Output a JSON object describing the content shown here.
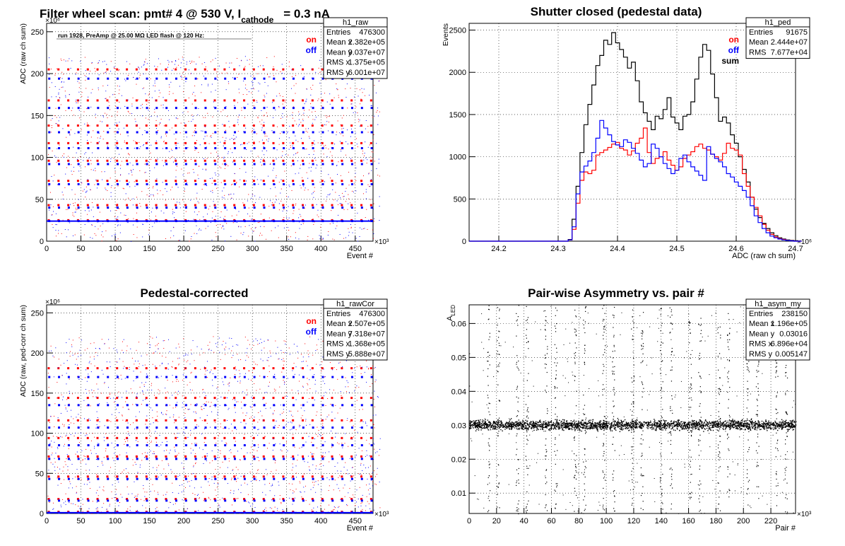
{
  "chart_data": [
    {
      "id": "raw",
      "type": "scatter",
      "title": "Filter wheel scan: pmt#   4 @   530 V, I",
      "title_sub": "cathode",
      "title_tail": "= 0.3 nA",
      "subtitle": "run 1928, PreAmp @ 25.00 MΩ LED flash @  120 Hz:",
      "xlabel": "Event #",
      "ylabel": "ADC (raw ch sum)",
      "x_exponent": "×10³",
      "y_exponent": "×10⁶",
      "xlim": [
        0,
        476
      ],
      "ylim": [
        0,
        260
      ],
      "xticks": [
        0,
        50,
        100,
        150,
        200,
        250,
        300,
        350,
        400,
        450
      ],
      "yticks": [
        0,
        50,
        100,
        150,
        200,
        250
      ],
      "grid": true,
      "legend": {
        "position": "top-right",
        "entries": [
          {
            "label": "on",
            "color": "#ff0000"
          },
          {
            "label": "off",
            "color": "#0000ff"
          }
        ]
      },
      "stats": {
        "name": "h1_raw",
        "rows": [
          [
            "Entries",
            "476300"
          ],
          [
            "Mean x",
            "2.382e+05"
          ],
          [
            "Mean y",
            "9.037e+07"
          ],
          [
            "RMS x",
            "1.375e+05"
          ],
          [
            "RMS y",
            "6.001e+07"
          ]
        ]
      },
      "series": [
        {
          "name": "on",
          "color": "#ff0000",
          "levels": [
            205,
            168,
            138,
            117,
            96,
            72,
            43,
            25
          ]
        },
        {
          "name": "off",
          "color": "#0000ff",
          "levels": [
            194,
            159,
            130,
            111,
            92,
            68,
            40,
            24
          ]
        }
      ],
      "steps_x": [
        0,
        14.2,
        28.5,
        42.7,
        57,
        71.2,
        85.5,
        99.7,
        114,
        128.2,
        142.5,
        156.7,
        171,
        185.2,
        199.5,
        213.7,
        228,
        242.2,
        256.5,
        270.7,
        285,
        299.2,
        313.5,
        327.7,
        342,
        356.2,
        370.5,
        384.7,
        399,
        413.2,
        427.5,
        441.7,
        456,
        470.2
      ]
    },
    {
      "id": "ped",
      "type": "line",
      "title": "Shutter closed (pedestal data)",
      "xlabel": "ADC (raw ch sum)",
      "ylabel": "Events",
      "x_exponent": "×10⁶",
      "xlim": [
        24.15,
        24.7
      ],
      "ylim": [
        0,
        2580
      ],
      "xticks": [
        24.2,
        24.3,
        24.4,
        24.5,
        24.6,
        24.7
      ],
      "yticks": [
        0,
        500,
        1000,
        1500,
        2000,
        2500
      ],
      "grid": true,
      "legend": {
        "position": "top-right",
        "entries": [
          {
            "label": "on",
            "color": "#ff0000"
          },
          {
            "label": "off",
            "color": "#0000ff"
          },
          {
            "label": "sum",
            "color": "#000000"
          }
        ]
      },
      "stats": {
        "name": "h1_ped",
        "rows": [
          [
            "Entries",
            "91675"
          ],
          [
            "Mean",
            "2.444e+07"
          ],
          [
            "RMS",
            "7.677e+04"
          ]
        ]
      },
      "bin_start": 24.15,
      "bin_width": 0.00667,
      "series": [
        {
          "name": "sum",
          "color": "#000000",
          "values": [
            0,
            0,
            0,
            0,
            0,
            0,
            0,
            0,
            0,
            0,
            0,
            0,
            0,
            0,
            0,
            0,
            0,
            0,
            0,
            0,
            0,
            0,
            0,
            0,
            0,
            20,
            260,
            650,
            1050,
            1380,
            1620,
            1850,
            2080,
            2200,
            2380,
            2330,
            2470,
            2350,
            2270,
            2180,
            2050,
            2120,
            1900,
            1650,
            1520,
            1420,
            1320,
            1480,
            1450,
            1560,
            1700,
            1470,
            1400,
            1320,
            1480,
            1500,
            1650,
            1920,
            2180,
            2330,
            2260,
            1980,
            1700,
            1420,
            1470,
            1400,
            1260,
            1160,
            1000,
            850,
            700,
            520,
            380,
            280,
            210,
            150,
            100,
            65,
            40,
            25,
            15,
            10,
            5,
            0
          ]
        },
        {
          "name": "on",
          "color": "#ff0000",
          "values": [
            0,
            0,
            0,
            0,
            0,
            0,
            0,
            0,
            0,
            0,
            0,
            0,
            0,
            0,
            0,
            0,
            0,
            0,
            0,
            0,
            0,
            0,
            0,
            0,
            0,
            15,
            140,
            450,
            720,
            820,
            800,
            840,
            1020,
            1050,
            1080,
            1110,
            1150,
            1170,
            1100,
            1080,
            1020,
            1070,
            1160,
            1220,
            1340,
            1050,
            920,
            980,
            1000,
            1060,
            960,
            900,
            840,
            880,
            980,
            1020,
            1060,
            1120,
            1150,
            1100,
            1080,
            1030,
            1000,
            960,
            1040,
            1160,
            1100,
            1080,
            1020,
            800,
            650,
            520,
            400,
            300,
            200,
            130,
            80,
            50,
            30,
            20,
            10,
            5,
            0,
            0
          ]
        },
        {
          "name": "off",
          "color": "#0000ff",
          "values": [
            0,
            0,
            0,
            0,
            0,
            0,
            0,
            0,
            0,
            0,
            0,
            0,
            0,
            0,
            0,
            0,
            0,
            0,
            0,
            0,
            0,
            0,
            0,
            0,
            0,
            15,
            170,
            560,
            820,
            890,
            950,
            1050,
            1220,
            1430,
            1340,
            1260,
            1180,
            1140,
            1120,
            1200,
            1170,
            1100,
            1040,
            960,
            880,
            920,
            1150,
            1100,
            1000,
            920,
            860,
            800,
            840,
            980,
            1020,
            940,
            880,
            830,
            780,
            720,
            1120,
            1030,
            980,
            940,
            880,
            800,
            760,
            700,
            650,
            600,
            520,
            420,
            300,
            220,
            150,
            100,
            60,
            40,
            25,
            15,
            8,
            4,
            0,
            0
          ]
        }
      ]
    },
    {
      "id": "rawCor",
      "type": "scatter",
      "title": "Pedestal-corrected",
      "xlabel": "Event #",
      "ylabel": "ADC (raw, ped-corr ch sum)",
      "x_exponent": "×10³",
      "y_exponent": "×10⁶",
      "xlim": [
        0,
        476
      ],
      "ylim": [
        0,
        260
      ],
      "xticks": [
        0,
        50,
        100,
        150,
        200,
        250,
        300,
        350,
        400,
        450
      ],
      "yticks": [
        0,
        50,
        100,
        150,
        200,
        250
      ],
      "grid": true,
      "legend": {
        "position": "top-right",
        "entries": [
          {
            "label": "on",
            "color": "#ff0000"
          },
          {
            "label": "off",
            "color": "#0000ff"
          }
        ]
      },
      "stats": {
        "name": "h1_rawCor",
        "rows": [
          [
            "Entries",
            "476300"
          ],
          [
            "Mean x",
            "2.507e+05"
          ],
          [
            "Mean y",
            "7.318e+07"
          ],
          [
            "RMS x",
            "1.368e+05"
          ],
          [
            "RMS y",
            "5.888e+07"
          ]
        ]
      },
      "series": [
        {
          "name": "on",
          "color": "#ff0000",
          "levels": [
            181,
            144,
            116,
            94,
            71,
            46,
            18,
            2
          ]
        },
        {
          "name": "off",
          "color": "#0000ff",
          "levels": [
            170,
            135,
            107,
            85,
            68,
            43,
            16,
            1
          ]
        }
      ],
      "steps_x": [
        0,
        14.2,
        28.5,
        42.7,
        57,
        71.2,
        85.5,
        99.7,
        114,
        128.2,
        142.5,
        156.7,
        171,
        185.2,
        199.5,
        213.7,
        228,
        242.2,
        256.5,
        270.7,
        285,
        299.2,
        313.5,
        327.7,
        342,
        356.2,
        370.5,
        384.7,
        399,
        413.2,
        427.5,
        441.7,
        456,
        470.2
      ]
    },
    {
      "id": "asym",
      "type": "scatter",
      "title": "Pair-wise Asymmetry vs. pair #",
      "xlabel": "Pair #",
      "ylabel": "A",
      "ylabel_sub": "LED",
      "x_exponent": "×10³",
      "xlim": [
        0,
        238
      ],
      "ylim": [
        0.004,
        0.0655
      ],
      "xticks": [
        0,
        20,
        40,
        60,
        80,
        100,
        120,
        140,
        160,
        180,
        200,
        220
      ],
      "yticks": [
        0.01,
        0.02,
        0.03,
        0.04,
        0.05,
        0.06
      ],
      "grid": true,
      "stats": {
        "name": "h1_asym_my",
        "rows": [
          [
            "Entries",
            "238150"
          ],
          [
            "Mean x",
            "1.196e+05"
          ],
          [
            "Mean y",
            "0.03016"
          ],
          [
            "RMS x",
            "6.896e+04"
          ],
          [
            "RMS y",
            "0.005147"
          ]
        ]
      },
      "band_center": 0.0302,
      "band_halfwidth": 0.0012,
      "spikes_x": [
        14,
        21,
        35,
        42,
        56,
        63,
        77,
        84,
        98,
        105,
        119,
        126,
        140,
        147,
        161,
        168,
        182,
        189,
        203,
        210,
        224,
        231
      ],
      "color": "#000000"
    }
  ]
}
